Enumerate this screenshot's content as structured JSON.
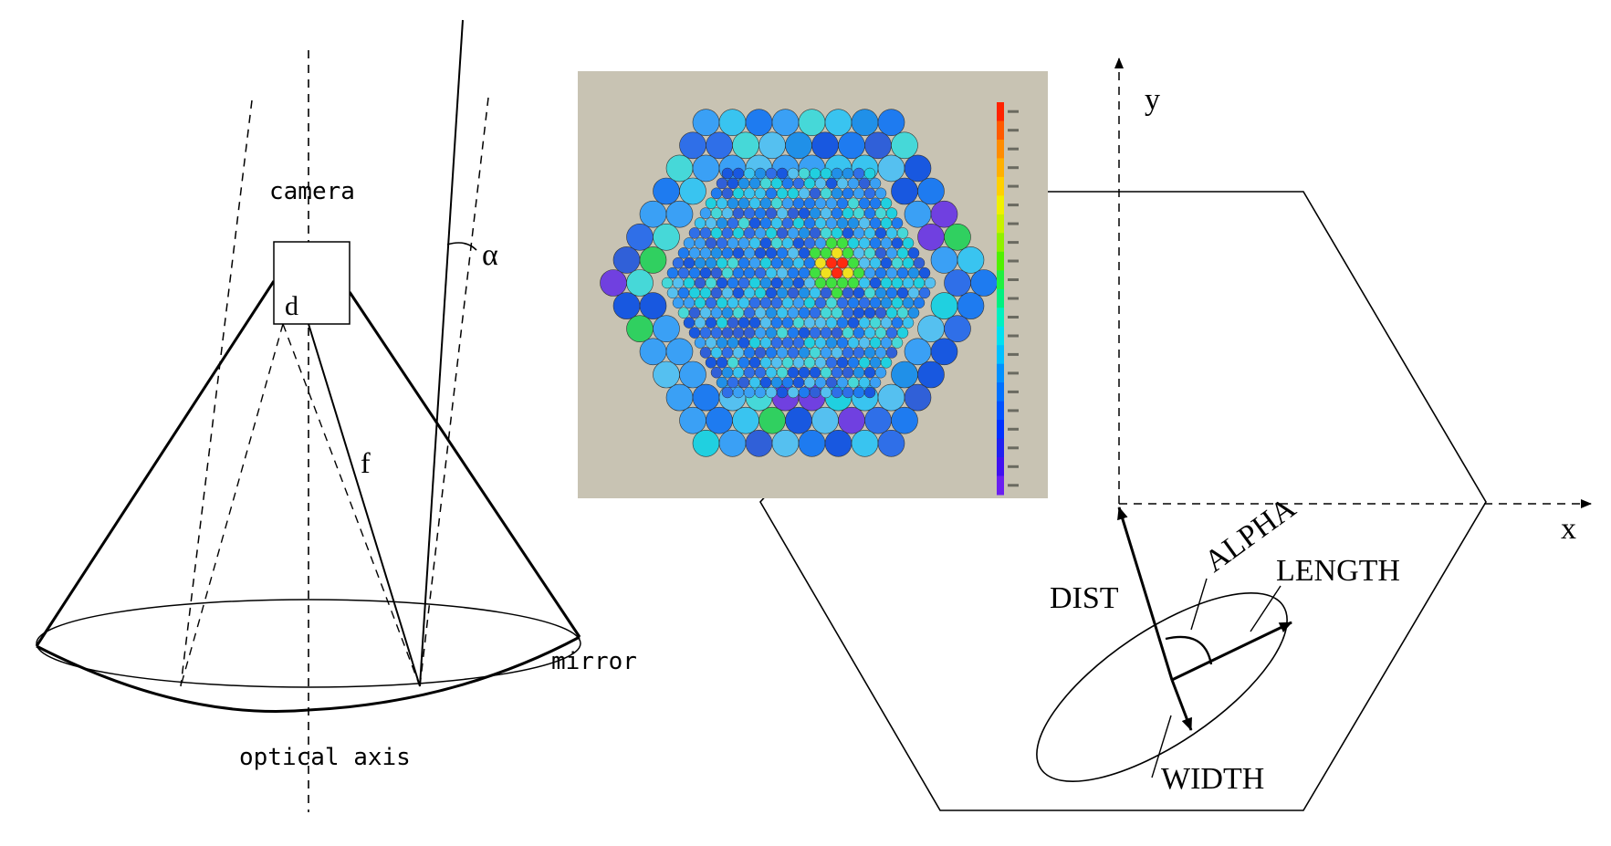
{
  "left_diagram": {
    "label_camera": "camera",
    "label_d": "d",
    "label_alpha": "α",
    "label_f": "f",
    "label_mirror": "mirror",
    "label_optical_axis": "optical axis"
  },
  "right_diagram": {
    "label_y": "y",
    "label_x": "x",
    "label_alpha": "ALPHA",
    "label_length": "LENGTH",
    "label_dist": "DIST",
    "label_width": "WIDTH"
  },
  "inset": {
    "description_colors": {
      "background": "#c8c3b3",
      "scale_top": "#ff2200",
      "scale_bottom": "#6a1ff0"
    }
  }
}
